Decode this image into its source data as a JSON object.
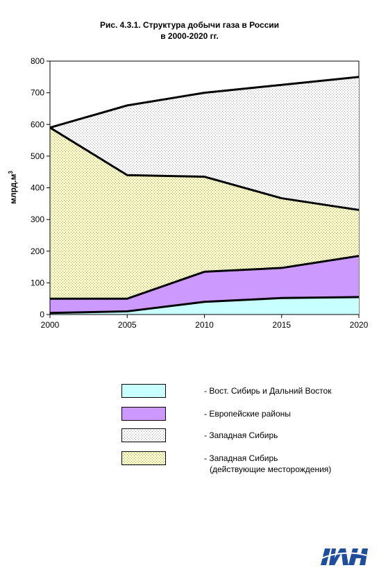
{
  "chart_data": {
    "type": "area",
    "title": [
      "Рис. 4.3.1. Структура добычи газа в России",
      "в 2000-2020 гг."
    ],
    "ylabel": "млрд.м",
    "ylabel_sup": "3",
    "x": [
      2000,
      2005,
      2010,
      2015,
      2020
    ],
    "xlim": [
      2000,
      2020
    ],
    "ylim": [
      0,
      800
    ],
    "x_ticks": [
      "2000",
      "2005",
      "2010",
      "2015",
      "2020"
    ],
    "y_ticks": [
      "0",
      "100",
      "200",
      "300",
      "400",
      "500",
      "600",
      "700",
      "800"
    ],
    "stacked": true,
    "series": [
      {
        "name": "- Вост. Сибирь и Дальний Восток",
        "values": [
          5,
          10,
          40,
          52,
          55
        ],
        "color": "#c8ffff",
        "pattern": "solid"
      },
      {
        "name": "- Европейские районы",
        "values": [
          45,
          40,
          95,
          95,
          130
        ],
        "color": "#cc99ff",
        "pattern": "solid"
      },
      {
        "name": "- Западная Сибирь (действующие месторождения)",
        "name_lines": [
          "- Западная Сибирь",
          "(действующие месторождения)"
        ],
        "values": [
          540,
          390,
          300,
          220,
          145
        ],
        "color": "#ffffcc",
        "pattern": "dots"
      },
      {
        "name": "- Западная Сибирь",
        "values": [
          0,
          220,
          265,
          358,
          420
        ],
        "color": "#ffffff",
        "pattern": "dots-sparse"
      }
    ],
    "legend_order": [
      0,
      1,
      3,
      2
    ],
    "legend_placement": "bottom"
  },
  "logo": {
    "name": "institute-logo",
    "color": "#1f4e9c"
  }
}
